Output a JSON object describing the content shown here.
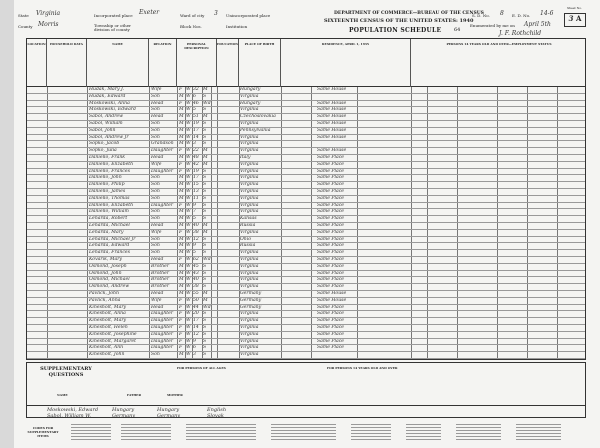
{
  "header": {
    "state_label": "State",
    "state": "Virginia",
    "county_label": "County",
    "county": "Morris",
    "place_label": "Incorporated place",
    "place": "Exeter",
    "ward_label": "Ward of city",
    "ward": "3",
    "township_label": "Township or other division of county",
    "block_label": "Block Nos.",
    "unincorporated_label": "Unincorporated place",
    "institution_label": "Institution",
    "department": "DEPARTMENT OF COMMERCE—BUREAU OF THE CENSUS",
    "title": "SIXTEENTH CENSUS OF THE UNITED STATES: 1940",
    "schedule": "POPULATION SCHEDULE",
    "schedule_no": "64",
    "sd_label": "S. D. No.",
    "sd": "8",
    "ed_label": "E. D. No.",
    "ed": "14-6",
    "enumerated_label": "Enumerated by me on",
    "enumerated_date": "April 5th",
    "enumerator": "J. F. Rothchild",
    "sheet_label": "Sheet No.",
    "sheet_no": "3",
    "sheet_letter": "A"
  },
  "column_heads": [
    "LOCATION",
    "HOUSEHOLD DATA",
    "NAME",
    "RELATION",
    "PERSONAL DESCRIPTION",
    "EDUCATION",
    "PLACE OF BIRTH",
    "RESIDENCE, APRIL 1, 1935",
    "PERSONS 14 YEARS OLD AND OVER—EMPLOYMENT STATUS"
  ],
  "rows": [
    {
      "name": "Hudak, Mary J.",
      "rel": "Wife",
      "sex": "F",
      "race": "W",
      "age": "32",
      "ms": "M",
      "birth": "Hungary",
      "res": "Same House"
    },
    {
      "name": "Hudak, Edward",
      "rel": "Son",
      "sex": "M",
      "race": "W",
      "age": "6",
      "ms": "S",
      "birth": "Virginia",
      "res": ""
    },
    {
      "name": "Moskowski, Anna",
      "rel": "Head",
      "sex": "F",
      "race": "W",
      "age": "46",
      "ms": "Wd",
      "birth": "Hungary",
      "res": "Same House"
    },
    {
      "name": "Moskowski, Edward",
      "rel": "Son",
      "sex": "M",
      "race": "W",
      "age": "5",
      "ms": "S",
      "birth": "Virginia",
      "res": "Same House"
    },
    {
      "name": "Sabol, Andrew",
      "rel": "Head",
      "sex": "M",
      "race": "W",
      "age": "51",
      "ms": "M",
      "birth": "Czechoslovakia",
      "res": "Same House"
    },
    {
      "name": "Sabol, William",
      "rel": "Son",
      "sex": "M",
      "race": "W",
      "age": "19",
      "ms": "S",
      "birth": "Virginia",
      "res": "Same House"
    },
    {
      "name": "Sabol, John",
      "rel": "Son",
      "sex": "M",
      "race": "W",
      "age": "17",
      "ms": "S",
      "birth": "Pennsylvania",
      "res": "Same House"
    },
    {
      "name": "Sabol, Andrew Jr",
      "rel": "Son",
      "sex": "M",
      "race": "W",
      "age": "14",
      "ms": "S",
      "birth": "Virginia",
      "res": "Same House"
    },
    {
      "name": "Sopko, Jacob",
      "rel": "Grandson",
      "sex": "M",
      "race": "W",
      "age": "3",
      "ms": "S",
      "birth": "Virginia",
      "res": ""
    },
    {
      "name": "Sopko, Julia",
      "rel": "Daughter",
      "sex": "F",
      "race": "W",
      "age": "22",
      "ms": "M",
      "birth": "Virginia",
      "res": "Same House"
    },
    {
      "name": "Daniello, Frank",
      "rel": "Head",
      "sex": "M",
      "race": "W",
      "age": "48",
      "ms": "M",
      "birth": "Italy",
      "res": "Same Place"
    },
    {
      "name": "Daniello, Elizabeth",
      "rel": "Wife",
      "sex": "F",
      "race": "W",
      "age": "42",
      "ms": "M",
      "birth": "Virginia",
      "res": "Same Place"
    },
    {
      "name": "Daniello, Frances",
      "rel": "Daughter",
      "sex": "F",
      "race": "W",
      "age": "19",
      "ms": "S",
      "birth": "Virginia",
      "res": "Same Place"
    },
    {
      "name": "Daniello, John",
      "rel": "Son",
      "sex": "M",
      "race": "W",
      "age": "17",
      "ms": "S",
      "birth": "Virginia",
      "res": "Same Place"
    },
    {
      "name": "Daniello, Philip",
      "rel": "Son",
      "sex": "M",
      "race": "W",
      "age": "15",
      "ms": "S",
      "birth": "Virginia",
      "res": "Same Place"
    },
    {
      "name": "Daniello, James",
      "rel": "Son",
      "sex": "M",
      "race": "W",
      "age": "13",
      "ms": "S",
      "birth": "Virginia",
      "res": "Same Place"
    },
    {
      "name": "Daniello, Thomas",
      "rel": "Son",
      "sex": "M",
      "race": "W",
      "age": "11",
      "ms": "S",
      "birth": "Virginia",
      "res": "Same Place"
    },
    {
      "name": "Daniello, Elizabeth",
      "rel": "Daughter",
      "sex": "F",
      "race": "W",
      "age": "9",
      "ms": "S",
      "birth": "Virginia",
      "res": "Same Place"
    },
    {
      "name": "Daniello, William",
      "rel": "Son",
      "sex": "M",
      "race": "W",
      "age": "7",
      "ms": "S",
      "birth": "Virginia",
      "res": "Same Place"
    },
    {
      "name": "Lenarda, Robert",
      "rel": "Son",
      "sex": "M",
      "race": "W",
      "age": "5",
      "ms": "S",
      "birth": "Kansas",
      "res": "Same Place"
    },
    {
      "name": "Lenarda, Michael",
      "rel": "Head",
      "sex": "M",
      "race": "W",
      "age": "40",
      "ms": "M",
      "birth": "Russia",
      "res": "Same Place"
    },
    {
      "name": "Lenarda, Mary",
      "rel": "Wife",
      "sex": "F",
      "race": "W",
      "age": "38",
      "ms": "M",
      "birth": "Virginia",
      "res": "Same Place"
    },
    {
      "name": "Lenarda, Michael Jr",
      "rel": "Son",
      "sex": "M",
      "race": "W",
      "age": "12",
      "ms": "S",
      "birth": "Ohio",
      "res": "Same Place"
    },
    {
      "name": "Lenarda, Edward",
      "rel": "Son",
      "sex": "M",
      "race": "W",
      "age": "9",
      "ms": "S",
      "birth": "Russia",
      "res": "Same Place"
    },
    {
      "name": "Lenarda, Frances",
      "rel": "Son",
      "sex": "M",
      "race": "W",
      "age": "5",
      "ms": "S",
      "birth": "Virginia",
      "res": "Same Place"
    },
    {
      "name": "Kovarik, Mary",
      "rel": "Head",
      "sex": "F",
      "race": "W",
      "age": "62",
      "ms": "Wd",
      "birth": "Virginia",
      "res": "Same Place"
    },
    {
      "name": "Osmond, Joseph",
      "rel": "Brother",
      "sex": "M",
      "race": "W",
      "age": "45",
      "ms": "S",
      "birth": "Virginia",
      "res": "Same Place"
    },
    {
      "name": "Osmond, John",
      "rel": "Brother",
      "sex": "M",
      "race": "W",
      "age": "43",
      "ms": "S",
      "birth": "Virginia",
      "res": "Same Place"
    },
    {
      "name": "Osmond, Michael",
      "rel": "Brother",
      "sex": "M",
      "race": "W",
      "age": "40",
      "ms": "S",
      "birth": "Virginia",
      "res": "Same Place"
    },
    {
      "name": "Osmond, Andrew",
      "rel": "Brother",
      "sex": "M",
      "race": "W",
      "age": "38",
      "ms": "S",
      "birth": "Virginia",
      "res": "Same Place"
    },
    {
      "name": "Pavlick, John",
      "rel": "Head",
      "sex": "M",
      "race": "W",
      "age": "55",
      "ms": "M",
      "birth": "Germany",
      "res": "Same House"
    },
    {
      "name": "Pavlick, Anna",
      "rel": "Wife",
      "sex": "F",
      "race": "W",
      "age": "50",
      "ms": "M",
      "birth": "Germany",
      "res": "Same House"
    },
    {
      "name": "Kinesholt, Mary",
      "rel": "Head",
      "sex": "F",
      "race": "W",
      "age": "44",
      "ms": "Wd",
      "birth": "Germany",
      "res": "Same Place"
    },
    {
      "name": "Kinesholt, Anna",
      "rel": "Daughter",
      "sex": "F",
      "race": "W",
      "age": "20",
      "ms": "S",
      "birth": "Virginia",
      "res": "Same Place"
    },
    {
      "name": "Kinesholt, Mary",
      "rel": "Daughter",
      "sex": "F",
      "race": "W",
      "age": "17",
      "ms": "S",
      "birth": "Virginia",
      "res": "Same Place"
    },
    {
      "name": "Kinesholt, Helen",
      "rel": "Daughter",
      "sex": "F",
      "race": "W",
      "age": "14",
      "ms": "S",
      "birth": "Virginia",
      "res": "Same Place"
    },
    {
      "name": "Kinesholt, Josephine",
      "rel": "Daughter",
      "sex": "F",
      "race": "W",
      "age": "12",
      "ms": "S",
      "birth": "Virginia",
      "res": "Same Place"
    },
    {
      "name": "Kinesholt, Margaret",
      "rel": "Daughter",
      "sex": "F",
      "race": "W",
      "age": "9",
      "ms": "S",
      "birth": "Virginia",
      "res": "Same Place"
    },
    {
      "name": "Kinesholt, Ann",
      "rel": "Daughter",
      "sex": "F",
      "race": "W",
      "age": "6",
      "ms": "S",
      "birth": "Virginia",
      "res": "Same Place"
    },
    {
      "name": "Kinesholt, John",
      "rel": "Son",
      "sex": "M",
      "race": "W",
      "age": "3",
      "ms": "S",
      "birth": "Virginia",
      "res": ""
    }
  ],
  "supplementary": {
    "title": "SUPPLEMENTARY QUESTIONS",
    "name_col": "NAME",
    "father_col": "FATHER",
    "mother_col": "MOTHER",
    "section": "FOR PERSONS OF ALL AGES",
    "section2": "FOR PERSONS 14 YEARS OLD AND OVER",
    "entries": [
      {
        "name": "Moskowski, Edward",
        "father": "Hungary",
        "mother": "Hungary",
        "lang": "English"
      },
      {
        "name": "Sabol, William W.",
        "father": "Germany",
        "mother": "Germany",
        "lang": "Slovak"
      }
    ]
  },
  "footer_title": "CODES FOR SUPPLEMENTARY ITEMS"
}
